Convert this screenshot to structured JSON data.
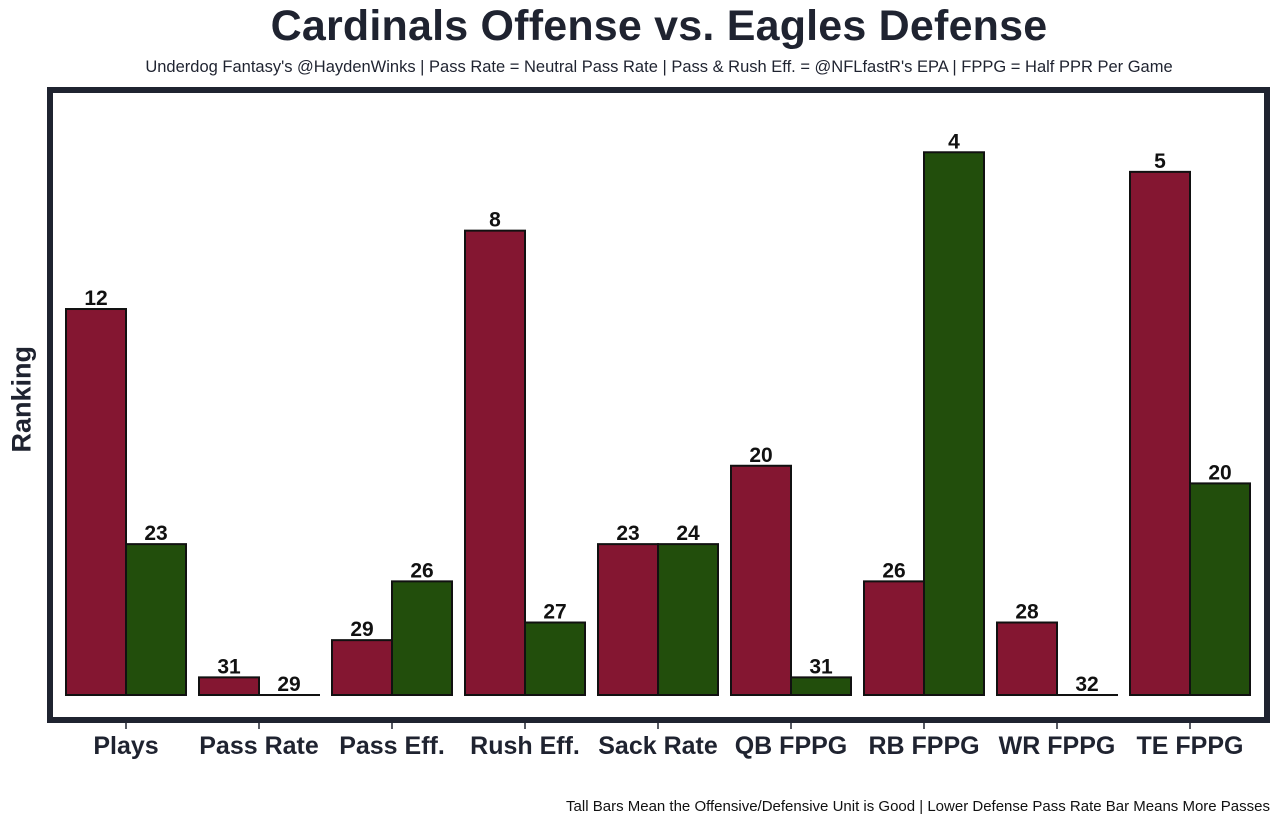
{
  "chart_data": {
    "type": "bar",
    "title": "Cardinals Offense vs. Eagles Defense",
    "subtitle": "Underdog Fantasy's @HaydenWinks | Pass Rate = Neutral Pass Rate | Pass & Rush Eff. = @NFLfastR's EPA | FPPG = Half PPR Per Game",
    "footer": "Tall Bars Mean the Offensive/Defensive Unit is Good | Lower Defense Pass Rate Bar Means More Passes",
    "xlabel": "",
    "ylabel": "Ranking",
    "ylim": [
      0,
      29.5
    ],
    "grid": false,
    "legend": "none",
    "categories": [
      "Plays",
      "Pass Rate",
      "Pass Eff.",
      "Rush Eff.",
      "Sack Rate",
      "QB FPPG",
      "RB FPPG",
      "WR FPPG",
      "TE FPPG"
    ],
    "series": [
      {
        "name": "Cardinals Offense",
        "color": "#841631",
        "ranks": [
          12,
          31,
          29,
          8,
          23,
          20,
          26,
          28,
          5
        ],
        "values": [
          19.7,
          0.9,
          2.8,
          23.7,
          7.7,
          11.7,
          5.8,
          3.7,
          26.7
        ]
      },
      {
        "name": "Eagles Defense",
        "color": "#224e0c",
        "ranks": [
          23,
          29,
          26,
          27,
          24,
          31,
          4,
          32,
          20
        ],
        "values": [
          7.7,
          0.0,
          5.8,
          3.7,
          7.7,
          0.9,
          27.7,
          0.0,
          10.8
        ]
      }
    ]
  }
}
